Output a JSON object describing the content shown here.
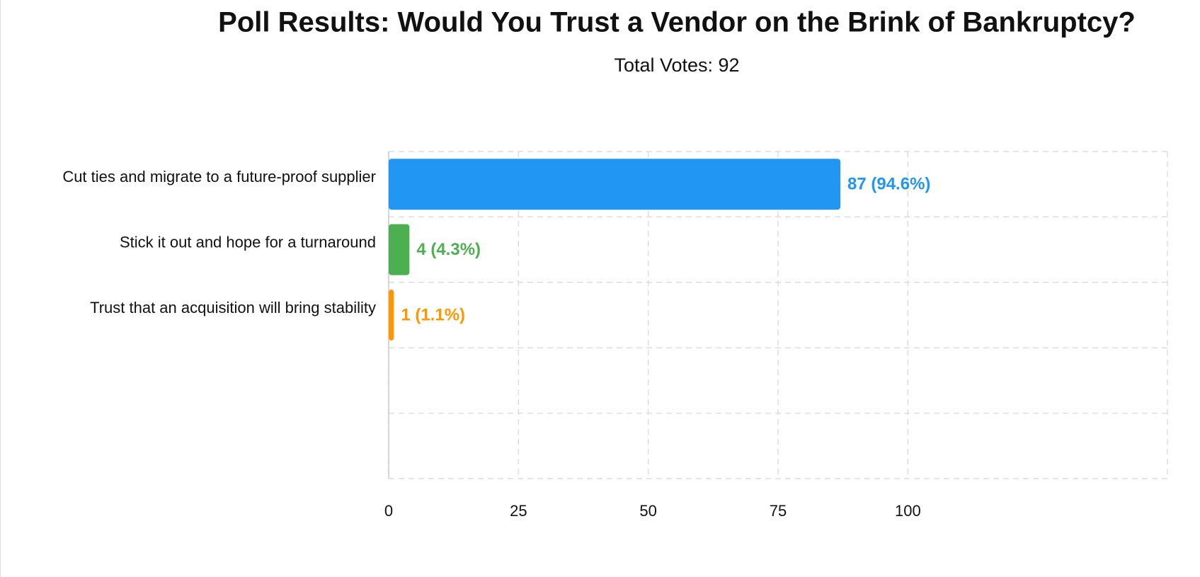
{
  "chart_data": {
    "type": "bar",
    "orientation": "horizontal",
    "title": "Poll Results: Would You Trust a Vendor on the Brink of Bankruptcy?",
    "subtitle": "Total Votes: 92",
    "categories": [
      "Cut ties and migrate to a future-proof supplier",
      "Stick it out and hope for a turnaround",
      "Trust that an acquisition will bring stability"
    ],
    "values": [
      87,
      4,
      1
    ],
    "value_labels": [
      "87 (94.6%)",
      "4 (4.3%)",
      "1 (1.1%)"
    ],
    "colors": [
      "#2196F3",
      "#4CAF50",
      "#FF9800"
    ],
    "xlim": [
      0,
      150
    ],
    "xticks": [
      0,
      25,
      50,
      75,
      100
    ],
    "grid": true
  }
}
